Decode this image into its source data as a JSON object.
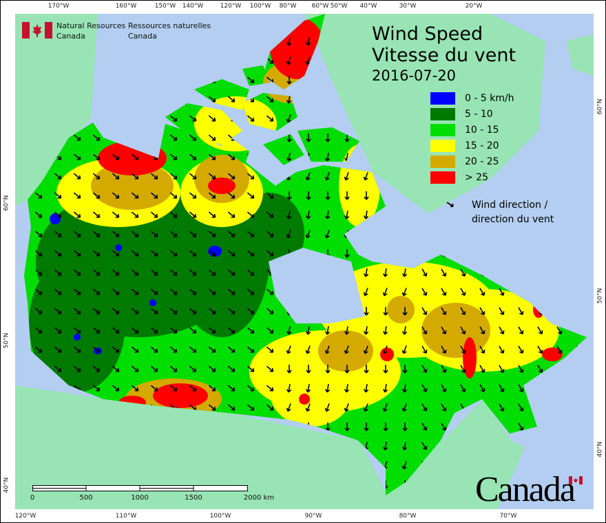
{
  "header": {
    "org_en": [
      "Natural Resources",
      "Canada"
    ],
    "org_fr": [
      "Ressources naturelles",
      "Canada"
    ],
    "title_en": "Wind Speed",
    "title_fr": "Vitesse du vent",
    "date": "2016-07-20",
    "wordmark": "Canada"
  },
  "legend": {
    "items": [
      {
        "label": "0 - 5 km/h",
        "color": "#0000ff"
      },
      {
        "label": "5 - 10",
        "color": "#007a00"
      },
      {
        "label": "10 - 15",
        "color": "#00dd00"
      },
      {
        "label": "15 - 20",
        "color": "#ffff00"
      },
      {
        "label": "20 - 25",
        "color": "#d4aa00"
      },
      {
        "label": "> 25",
        "color": "#ff0000"
      }
    ],
    "wind_line1": "Wind direction /",
    "wind_line2": "direction du vent",
    "wind_icon": "arrow-icon"
  },
  "axes": {
    "top_longitudes": [
      "170°W",
      "160°W",
      "150°W",
      "140°W",
      "120°W",
      "100°W",
      "80°W",
      "60°W",
      "50°W",
      "40°W",
      "30°W",
      "20°W"
    ],
    "bottom_longitudes": [
      "120°W",
      "110°W",
      "100°W",
      "90°W",
      "80°W",
      "70°W"
    ],
    "left_latitudes": [
      "60°N",
      "50°N",
      "40°N"
    ],
    "right_latitudes": [
      "60°N",
      "50°N",
      "40°N"
    ]
  },
  "scale_bar": {
    "labels": [
      "0",
      "500",
      "1000",
      "1500",
      "2000 km"
    ]
  },
  "colors": {
    "ocean": "#b3cef0",
    "other_land": "#98e4b4",
    "flag_red": "#c8102e"
  }
}
